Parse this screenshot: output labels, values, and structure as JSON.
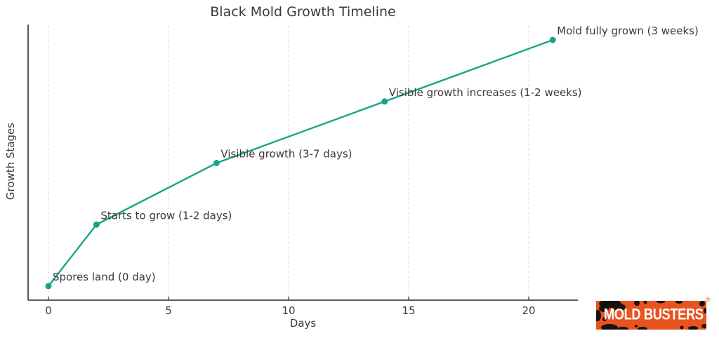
{
  "chart": {
    "title": "Black Mold Growth Timeline",
    "xlabel": "Days",
    "ylabel": "Growth Stages"
  },
  "chart_data": {
    "type": "line",
    "title": "Black Mold Growth Timeline",
    "xlabel": "Days",
    "ylabel": "Growth Stages",
    "x": [
      0,
      2,
      7,
      14,
      21
    ],
    "y": [
      0,
      1,
      2,
      3,
      4
    ],
    "annotations": [
      "Spores land (0 day)",
      "Starts to grow (1-2 days)",
      "Visible growth (3-7 days)",
      "Visible growth increases (1-2 weeks)",
      "Mold fully grown (3 weeks)"
    ],
    "xticks": [
      0,
      5,
      10,
      15,
      20
    ],
    "xlim": [
      -0.85,
      22
    ],
    "ylim": [
      0,
      4.2
    ],
    "line_color": "#17a589",
    "marker": "circle",
    "grid": "vertical-dashed",
    "gridline_color": "#dcdcdc",
    "spine_color": "#454545",
    "text_color": "#3a3a3a",
    "legend": "none"
  },
  "logo": {
    "text": "MOLD BUSTERS",
    "registered": "®",
    "background_color": "#e8531f",
    "text_color": "#ffffff"
  }
}
